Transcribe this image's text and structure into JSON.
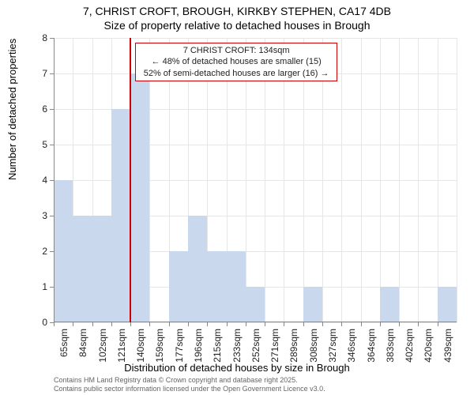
{
  "title_line1": "7, CHRIST CROFT, BROUGH, KIRKBY STEPHEN, CA17 4DB",
  "title_line2": "Size of property relative to detached houses in Brough",
  "y_axis_label": "Number of detached properties",
  "x_axis_label": "Distribution of detached houses by size in Brough",
  "footer_line1": "Contains HM Land Registry data © Crown copyright and database right 2025.",
  "footer_line2": "Contains public sector information licensed under the Open Government Licence v3.0.",
  "chart": {
    "type": "histogram",
    "background_color": "#ffffff",
    "grid_color": "#e6e6e6",
    "axis_color": "#888888",
    "bar_color": "#c9d8ec",
    "bar_border_color": "#c9d8ec",
    "marker_color": "#cc0000",
    "annotation_border_color": "#cc0000",
    "ylim": [
      0,
      8
    ],
    "yticks": [
      0,
      1,
      2,
      3,
      4,
      5,
      6,
      7,
      8
    ],
    "x_categories": [
      "65sqm",
      "84sqm",
      "102sqm",
      "121sqm",
      "140sqm",
      "159sqm",
      "177sqm",
      "196sqm",
      "215sqm",
      "233sqm",
      "252sqm",
      "271sqm",
      "289sqm",
      "308sqm",
      "327sqm",
      "346sqm",
      "364sqm",
      "383sqm",
      "402sqm",
      "420sqm",
      "439sqm"
    ],
    "values": [
      4,
      3,
      3,
      6,
      7,
      0,
      2,
      3,
      2,
      2,
      1,
      0,
      0,
      1,
      0,
      0,
      0,
      1,
      0,
      0,
      1
    ],
    "marker_bin_index": 4,
    "annotation_lines": [
      "7 CHRIST CROFT: 134sqm",
      "← 48% of detached houses are smaller (15)",
      "52% of semi-detached houses are larger (16) →"
    ],
    "title_fontsize": 14,
    "label_fontsize": 13,
    "tick_fontsize": 12,
    "annotation_fontsize": 11,
    "footer_fontsize": 9
  }
}
